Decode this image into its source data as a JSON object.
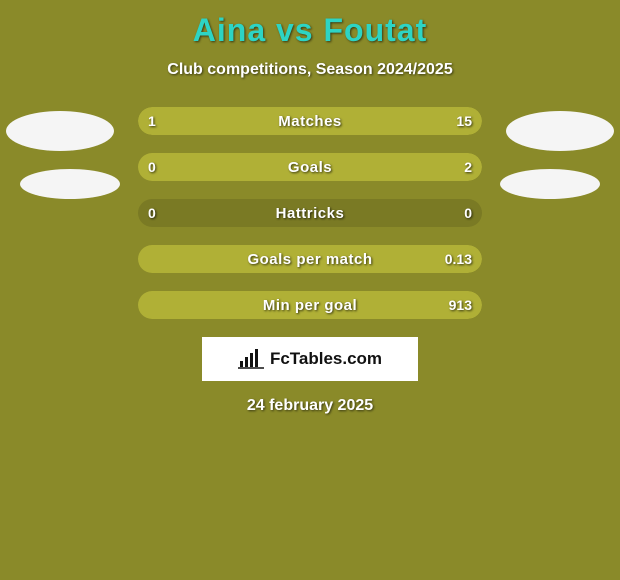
{
  "background_color": "#8a8a29",
  "title": {
    "text": "Aina vs Foutat",
    "color": "#2dd4c4",
    "fontsize": 32
  },
  "subtitle": "Club competitions, Season 2024/2025",
  "date": "24 february 2025",
  "brand": {
    "text": "FcTables.com",
    "icon_name": "bar-chart-icon"
  },
  "stat_bar": {
    "track_color": "#7a7a24",
    "left_fill_color": "#b0b036",
    "right_fill_color": "#b0b036",
    "label_color": "#ffffff",
    "value_color": "#ffffff",
    "height": 28,
    "radius": 14
  },
  "stats": [
    {
      "label": "Matches",
      "left_value": "1",
      "right_value": "15",
      "left_pct": 6.0,
      "right_pct": 94.0
    },
    {
      "label": "Goals",
      "left_value": "0",
      "right_value": "2",
      "left_pct": 0.0,
      "right_pct": 100.0
    },
    {
      "label": "Hattricks",
      "left_value": "0",
      "right_value": "0",
      "left_pct": 0.0,
      "right_pct": 0.0
    },
    {
      "label": "Goals per match",
      "left_value": "",
      "right_value": "0.13",
      "left_pct": 0.0,
      "right_pct": 100.0
    },
    {
      "label": "Min per goal",
      "left_value": "",
      "right_value": "913",
      "left_pct": 0.0,
      "right_pct": 100.0
    }
  ],
  "avatars": {
    "bg_color": "#f5f5f5"
  }
}
